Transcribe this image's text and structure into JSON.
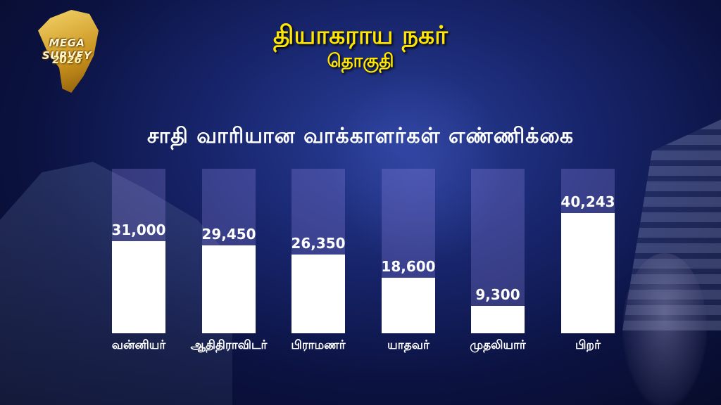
{
  "logo": {
    "brand": "MEGA SURVEY",
    "year": "2026"
  },
  "header": {
    "title": "தியாகராய நகர்",
    "subtitle": "தொகுதி"
  },
  "colors": {
    "title": "#ffe600",
    "bar": "#ffffff",
    "bar_track": "#968ce6",
    "background": "#17246a"
  },
  "chart_data": {
    "type": "bar",
    "title": "சாதி வாரியான வாக்காளர்கள்  எண்ணிக்கை",
    "categories": [
      "வன்னியர்",
      "ஆதிதிராவிடர்",
      "பிராமணர்",
      "யாதவர்",
      "முதலியார்",
      "பிறர்"
    ],
    "value_labels": [
      "31,000",
      "29,450",
      "26,350",
      "18,600",
      "9,300",
      "40,243"
    ],
    "values": [
      31000,
      29450,
      26350,
      18600,
      9300,
      40243
    ],
    "ylim": [
      0,
      80000
    ],
    "grid": false,
    "legend": "none"
  }
}
